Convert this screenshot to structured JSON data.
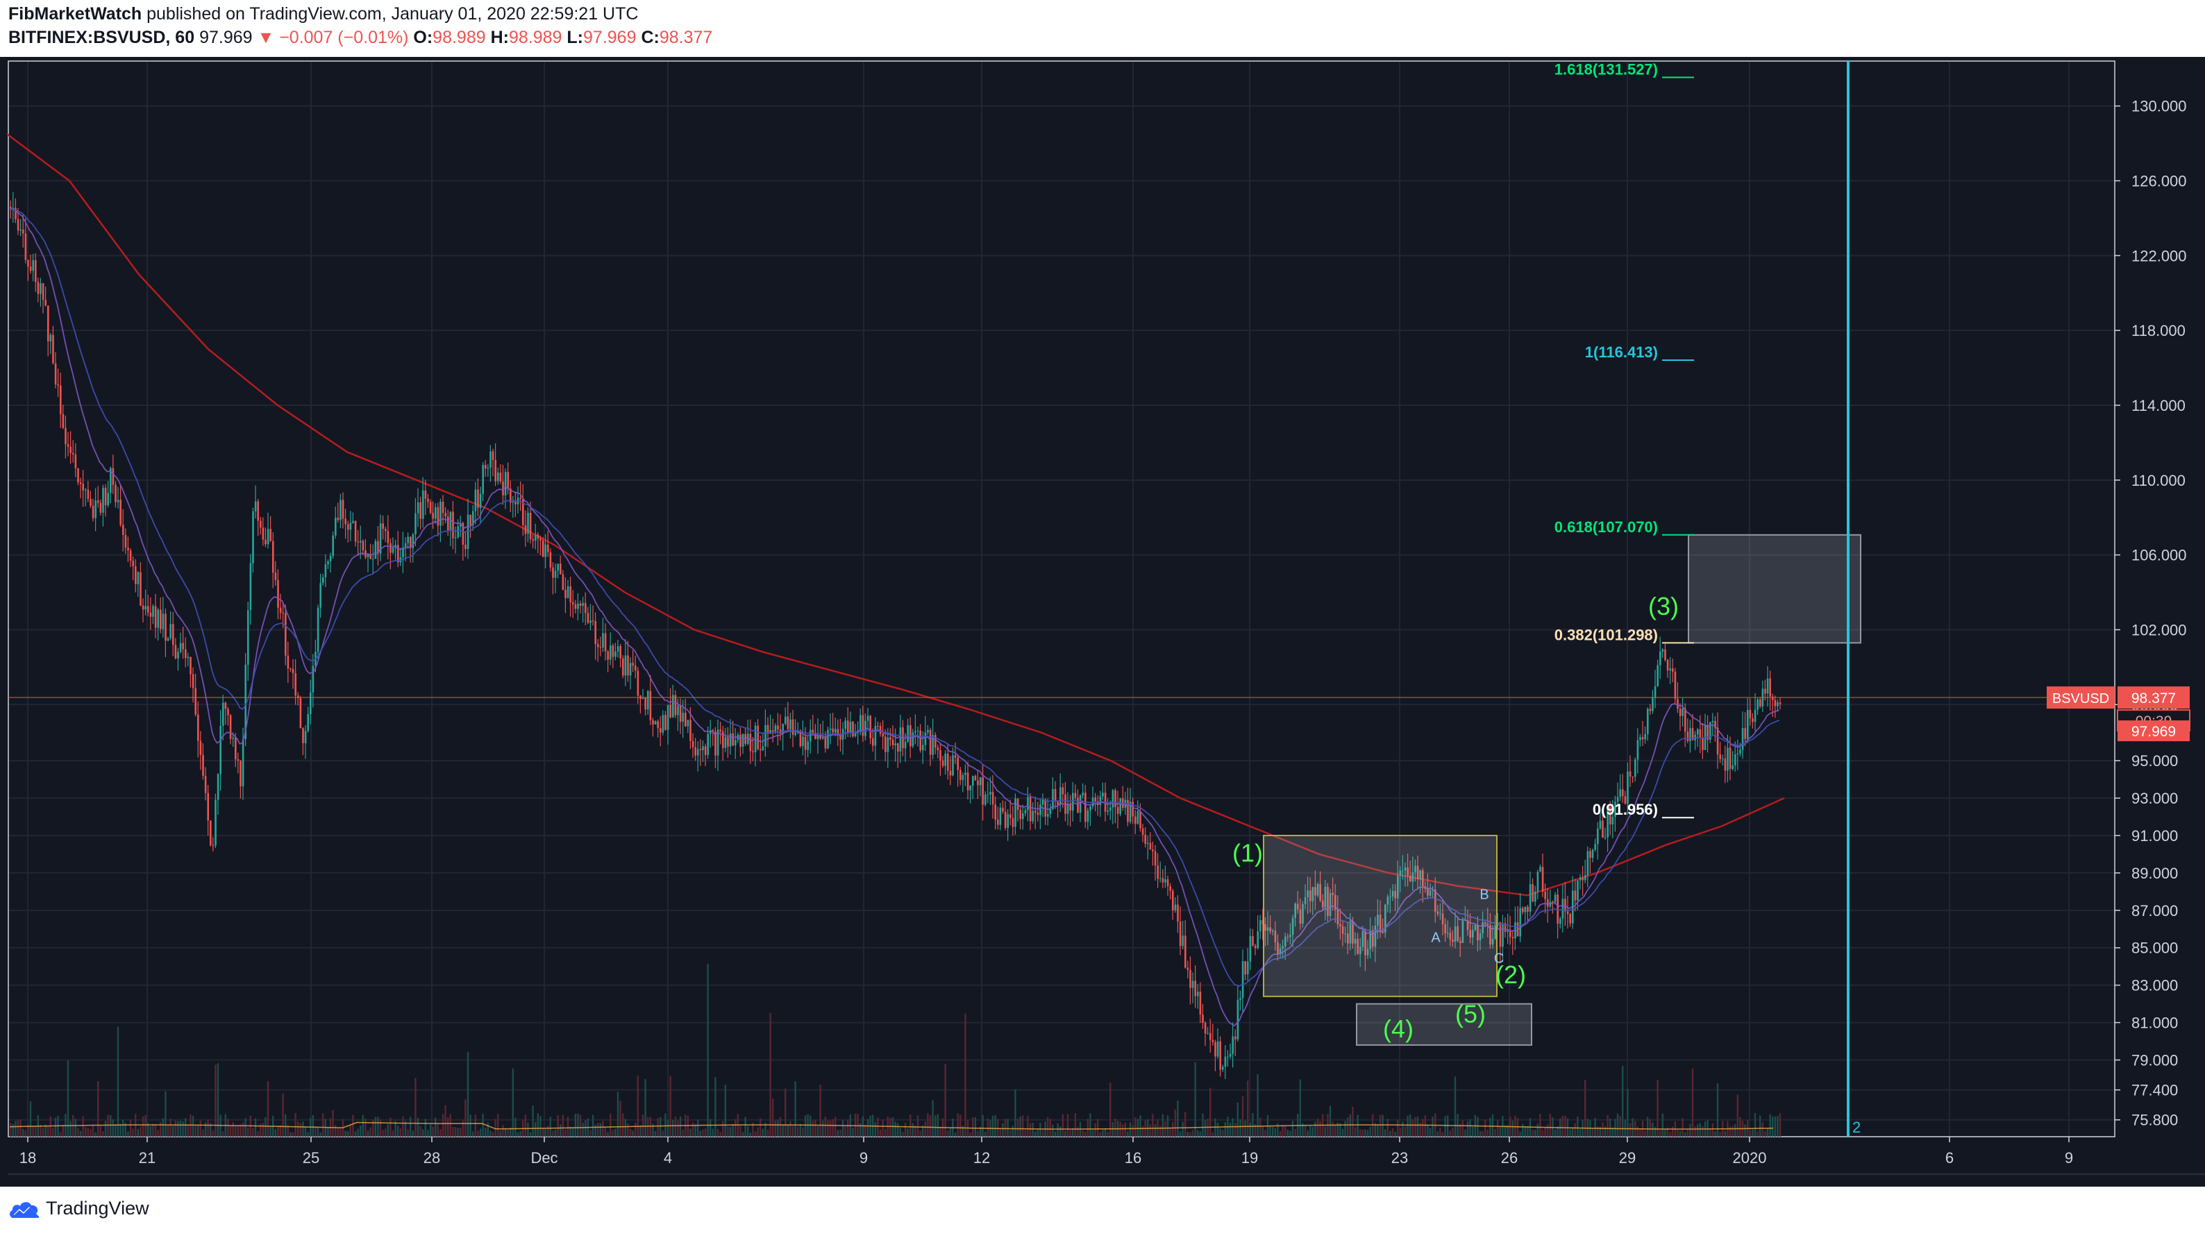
{
  "header": {
    "author": "FibMarketWatch",
    "published_text": "published on TradingView.com, January 01, 2020 22:59:21 UTC",
    "symbol": "BITFINEX:BSVUSD, 60",
    "last": "97.969",
    "change": "−0.007 (−0.01%)",
    "o_label": "O:",
    "o_value": "98.989",
    "h_label": "H:",
    "h_value": "98.989",
    "l_label": "L:",
    "l_value": "97.969",
    "c_label": "C:",
    "c_value": "98.377"
  },
  "chart_data": {
    "type": "candlestick",
    "symbol": "BSVUSD",
    "interval": "60",
    "ylim": [
      74.9,
      132.4
    ],
    "y_ticks": [
      "130.000",
      "126.000",
      "122.000",
      "118.000",
      "114.000",
      "110.000",
      "106.000",
      "102.000",
      "98.000",
      "95.000",
      "93.000",
      "91.000",
      "89.000",
      "87.000",
      "85.000",
      "83.000",
      "81.000",
      "79.000",
      "77.400",
      "75.800"
    ],
    "x_ticks": [
      {
        "label": "18",
        "x": 40
      },
      {
        "label": "21",
        "x": 212
      },
      {
        "label": "25",
        "x": 448
      },
      {
        "label": "28",
        "x": 622
      },
      {
        "label": "Dec",
        "x": 784
      },
      {
        "label": "4",
        "x": 962
      },
      {
        "label": "9",
        "x": 1244
      },
      {
        "label": "12",
        "x": 1414
      },
      {
        "label": "16",
        "x": 1632
      },
      {
        "label": "19",
        "x": 1800
      },
      {
        "label": "23",
        "x": 2016
      },
      {
        "label": "26",
        "x": 2174
      },
      {
        "label": "29",
        "x": 2344
      },
      {
        "label": "2020",
        "x": 2520
      },
      {
        "label": "6",
        "x": 2808
      },
      {
        "label": "9",
        "x": 2980
      }
    ],
    "price_path": [
      [
        10,
        125
      ],
      [
        60,
        120
      ],
      [
        95,
        112
      ],
      [
        130,
        108
      ],
      [
        160,
        110
      ],
      [
        200,
        104
      ],
      [
        240,
        102
      ],
      [
        270,
        100
      ],
      [
        290,
        95
      ],
      [
        305,
        90
      ],
      [
        320,
        98
      ],
      [
        345,
        94
      ],
      [
        365,
        109
      ],
      [
        390,
        106
      ],
      [
        420,
        99
      ],
      [
        440,
        96
      ],
      [
        460,
        104
      ],
      [
        490,
        109
      ],
      [
        520,
        106
      ],
      [
        550,
        107
      ],
      [
        580,
        106
      ],
      [
        610,
        109
      ],
      [
        640,
        108
      ],
      [
        670,
        107
      ],
      [
        700,
        111
      ],
      [
        740,
        109
      ],
      [
        780,
        106
      ],
      [
        820,
        104
      ],
      [
        850,
        102
      ],
      [
        880,
        101
      ],
      [
        920,
        99
      ],
      [
        950,
        97
      ],
      [
        975,
        98
      ],
      [
        1000,
        96
      ],
      [
        1040,
        96
      ],
      [
        1080,
        96
      ],
      [
        1120,
        97
      ],
      [
        1160,
        96
      ],
      [
        1200,
        96.5
      ],
      [
        1240,
        97
      ],
      [
        1280,
        96
      ],
      [
        1320,
        96.5
      ],
      [
        1360,
        95
      ],
      [
        1400,
        94
      ],
      [
        1440,
        92
      ],
      [
        1480,
        92.5
      ],
      [
        1520,
        93
      ],
      [
        1560,
        92.5
      ],
      [
        1600,
        93
      ],
      [
        1640,
        92
      ],
      [
        1665,
        89
      ],
      [
        1690,
        87
      ],
      [
        1710,
        84
      ],
      [
        1735,
        81
      ],
      [
        1755,
        79
      ],
      [
        1775,
        80
      ],
      [
        1790,
        84
      ],
      [
        1810,
        86
      ],
      [
        1840,
        85
      ],
      [
        1870,
        87
      ],
      [
        1900,
        88
      ],
      [
        1930,
        86.5
      ],
      [
        1960,
        85
      ],
      [
        1990,
        86.5
      ],
      [
        2020,
        89
      ],
      [
        2050,
        89
      ],
      [
        2075,
        86
      ],
      [
        2100,
        86
      ],
      [
        2130,
        86
      ],
      [
        2160,
        85.5
      ],
      [
        2190,
        86.5
      ],
      [
        2215,
        89
      ],
      [
        2240,
        87
      ],
      [
        2260,
        87
      ],
      [
        2285,
        90
      ],
      [
        2310,
        91.5
      ],
      [
        2335,
        93
      ],
      [
        2355,
        95
      ],
      [
        2375,
        98
      ],
      [
        2390,
        100.5
      ],
      [
        2410,
        99
      ],
      [
        2425,
        97
      ],
      [
        2445,
        96
      ],
      [
        2465,
        96.5
      ],
      [
        2485,
        95
      ],
      [
        2505,
        96
      ],
      [
        2525,
        98
      ],
      [
        2545,
        99
      ],
      [
        2560,
        98.4
      ]
    ],
    "ma_long_path": [
      [
        10,
        128.5
      ],
      [
        100,
        126
      ],
      [
        200,
        121
      ],
      [
        300,
        117
      ],
      [
        400,
        114
      ],
      [
        500,
        111.5
      ],
      [
        600,
        110
      ],
      [
        700,
        108.5
      ],
      [
        800,
        106.5
      ],
      [
        900,
        104
      ],
      [
        1000,
        102
      ],
      [
        1100,
        100.8
      ],
      [
        1200,
        99.8
      ],
      [
        1300,
        98.8
      ],
      [
        1400,
        97.7
      ],
      [
        1500,
        96.5
      ],
      [
        1600,
        95
      ],
      [
        1700,
        93
      ],
      [
        1800,
        91.5
      ],
      [
        1900,
        90
      ],
      [
        2000,
        89
      ],
      [
        2100,
        88.3
      ],
      [
        2200,
        87.8
      ],
      [
        2300,
        89
      ],
      [
        2400,
        90.5
      ],
      [
        2480,
        91.5
      ],
      [
        2570,
        93
      ]
    ],
    "last_price": 98.377,
    "current_price": 97.969,
    "price_tag_label": "BSVUSD",
    "price_tag_value": "98.377",
    "countdown": "00:39",
    "current_value": "97.969",
    "fib_levels": [
      {
        "label": "1.618(131.527)",
        "price": 131.527,
        "color": "#00e676"
      },
      {
        "label": "1(116.413)",
        "price": 116.413,
        "color": "#26c6da"
      },
      {
        "label": "0.618(107.070)",
        "price": 107.07,
        "color": "#00e676"
      },
      {
        "label": "0.382(101.298)",
        "price": 101.298,
        "color": "#ffe0b2"
      },
      {
        "label": "0(91.956)",
        "price": 91.956,
        "color": "#ffffff"
      }
    ],
    "wave_labels": [
      {
        "text": "(1)",
        "x": 1797,
        "price": 89.6
      },
      {
        "text": "(2)",
        "x": 2176,
        "price": 83.1
      },
      {
        "text": "(3)",
        "x": 2396,
        "price": 102.8
      },
      {
        "text": "(4)",
        "x": 2014,
        "price": 80.2
      },
      {
        "text": "(5)",
        "x": 2118,
        "price": 81.0
      }
    ],
    "abc_labels": [
      {
        "text": "A",
        "x": 2068,
        "price": 85.3
      },
      {
        "text": "B",
        "x": 2138,
        "price": 87.6
      },
      {
        "text": "C",
        "x": 2159,
        "price": 84.2
      }
    ],
    "vline_label": "2",
    "colors": {
      "background": "#131722",
      "grid": "#232632",
      "up": "#26a69a",
      "down": "#ef5350",
      "ma_long": "#b71c1c",
      "ma_fast": "#7e57c2",
      "ma_slow": "#3f51b5",
      "vline": "#26c6da",
      "price_tag": "#ef5350",
      "axis_text": "#d1d4dc"
    }
  },
  "footer": {
    "brand": "TradingView"
  }
}
